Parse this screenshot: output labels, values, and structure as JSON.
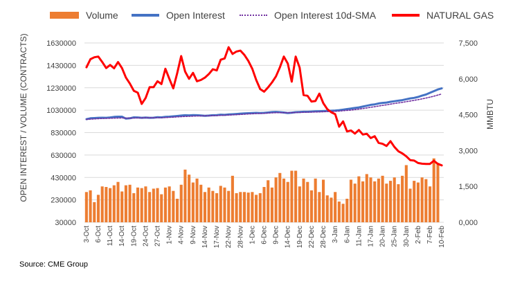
{
  "source_text": "Source: CME Group",
  "chart_data": {
    "type": "bar+line",
    "legend": [
      "Volume",
      "Open Interest",
      "Open Interest 10d-SMA",
      "NATURAL GAS"
    ],
    "legend_placement": "top",
    "colors": {
      "volume": "#ED7D31",
      "open_interest": "#4472C4",
      "sma": "#7030A0",
      "natural_gas": "#FF0000"
    },
    "y_left": {
      "label": "OPEN INTEREST / VOLUME (CONTRACTS)",
      "ticks": [
        "1630000",
        "1430000",
        "1230000",
        "1030000",
        "830000",
        "630000",
        "430000",
        "230000",
        "30000"
      ],
      "range": [
        30000,
        1630000
      ]
    },
    "y_right": {
      "label": "MMBTU",
      "ticks": [
        "7,500",
        "6,000",
        "4,500",
        "3,000",
        "1,500",
        "0,000"
      ],
      "range": [
        0,
        7500
      ]
    },
    "x_tick_labels": [
      "3-Oct",
      "6-Oct",
      "11-Oct",
      "14-Oct",
      "19-Oct",
      "24-Oct",
      "27-Oct",
      "1-Nov",
      "4-Nov",
      "9-Nov",
      "14-Nov",
      "17-Nov",
      "22-Nov",
      "28-Nov",
      "1-Dec",
      "6-Dec",
      "9-Dec",
      "14-Dec",
      "19-Dec",
      "22-Dec",
      "28-Dec",
      "3-Jan",
      "6-Jan",
      "11-Jan",
      "17-Jan",
      "20-Jan",
      "25-Jan",
      "30-Jan",
      "2-Feb",
      "7-Feb",
      "10-Feb"
    ],
    "volume": [
      300000,
      315000,
      210000,
      275000,
      350000,
      345000,
      335000,
      360000,
      390000,
      305000,
      360000,
      365000,
      290000,
      340000,
      335000,
      350000,
      300000,
      330000,
      335000,
      280000,
      340000,
      350000,
      310000,
      240000,
      365000,
      500000,
      455000,
      385000,
      420000,
      365000,
      300000,
      340000,
      310000,
      290000,
      355000,
      340000,
      310000,
      445000,
      290000,
      300000,
      300000,
      295000,
      300000,
      275000,
      290000,
      345000,
      405000,
      340000,
      430000,
      470000,
      420000,
      390000,
      490000,
      490000,
      350000,
      420000,
      390000,
      315000,
      420000,
      300000,
      410000,
      270000,
      250000,
      300000,
      215000,
      195000,
      240000,
      410000,
      375000,
      440000,
      395000,
      460000,
      430000,
      395000,
      420000,
      445000,
      375000,
      400000,
      430000,
      370000,
      445000,
      540000,
      330000,
      400000,
      385000,
      430000,
      415000,
      350000,
      600000,
      560000,
      0
    ],
    "open_interest": [
      950000,
      958000,
      960000,
      962000,
      963000,
      962000,
      965000,
      970000,
      972000,
      972000,
      955000,
      958000,
      966000,
      965000,
      962000,
      964000,
      962000,
      963000,
      967000,
      966000,
      970000,
      972000,
      975000,
      978000,
      982000,
      985000,
      984000,
      986000,
      985000,
      983000,
      980000,
      982000,
      985000,
      986000,
      990000,
      988000,
      992000,
      994000,
      996000,
      999000,
      1001000,
      1003000,
      1004000,
      1006000,
      1004000,
      1006000,
      1009000,
      1013000,
      1015000,
      1012000,
      1009000,
      1005000,
      1008000,
      1012000,
      1014000,
      1016000,
      1016000,
      1018000,
      1020000,
      1021000,
      1022000,
      1024000,
      1025000,
      1027000,
      1030000,
      1035000,
      1040000,
      1045000,
      1050000,
      1055000,
      1062000,
      1070000,
      1078000,
      1082000,
      1090000,
      1095000,
      1098000,
      1105000,
      1110000,
      1115000,
      1120000,
      1128000,
      1135000,
      1140000,
      1148000,
      1160000,
      1170000,
      1185000,
      1200000,
      1215000,
      1225000
    ],
    "open_interest_sma": [
      948000,
      950000,
      952000,
      954000,
      956000,
      957000,
      958000,
      959000,
      960000,
      961000,
      959000,
      959000,
      960000,
      961000,
      961000,
      962000,
      962000,
      962000,
      963000,
      963000,
      964000,
      966000,
      968000,
      970000,
      972000,
      974000,
      975000,
      977000,
      978000,
      979000,
      980000,
      980000,
      981000,
      982000,
      984000,
      985000,
      986000,
      988000,
      990000,
      992000,
      994000,
      996000,
      998000,
      1000000,
      1001000,
      1002000,
      1004000,
      1006000,
      1008000,
      1008000,
      1008000,
      1008000,
      1008000,
      1009000,
      1010000,
      1011000,
      1012000,
      1013000,
      1014000,
      1015000,
      1016000,
      1018000,
      1019000,
      1020000,
      1022000,
      1025000,
      1028000,
      1031000,
      1035000,
      1040000,
      1045000,
      1050000,
      1056000,
      1061000,
      1067000,
      1073000,
      1078000,
      1084000,
      1090000,
      1095000,
      1100000,
      1106000,
      1112000,
      1118000,
      1124000,
      1131000,
      1138000,
      1146000,
      1155000,
      1165000,
      1175000
    ],
    "natural_gas": [
      6480,
      6820,
      6900,
      6930,
      6700,
      6450,
      6580,
      6440,
      6700,
      6450,
      6050,
      5800,
      5500,
      5420,
      4950,
      5200,
      5650,
      5650,
      5900,
      5780,
      6420,
      6000,
      5600,
      6240,
      6950,
      6300,
      6000,
      6250,
      5900,
      5950,
      6050,
      6200,
      6400,
      6350,
      6800,
      6850,
      7320,
      7040,
      7140,
      7180,
      7000,
      6750,
      6420,
      5950,
      5570,
      5460,
      5640,
      5850,
      6100,
      6480,
      6930,
      6640,
      5880,
      6930,
      6470,
      5320,
      5290,
      5050,
      5070,
      5380,
      4980,
      4730,
      4600,
      4520,
      4000,
      4220,
      3800,
      3840,
      3710,
      3860,
      3670,
      3700,
      3520,
      3600,
      3320,
      3280,
      3190,
      3390,
      3150,
      2970,
      2880,
      2760,
      2600,
      2580,
      2480,
      2450,
      2440,
      2440,
      2570,
      2440,
      2380
    ]
  }
}
